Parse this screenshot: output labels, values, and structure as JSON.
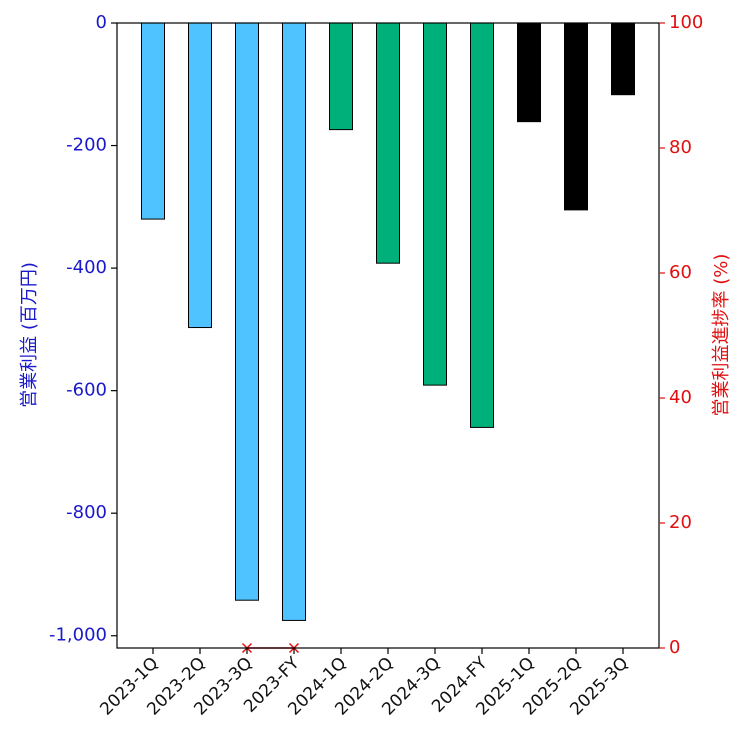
{
  "chart_data": {
    "type": "bar",
    "categories": [
      "2023-1Q",
      "2023-2Q",
      "2023-3Q",
      "2023-FY",
      "2024-1Q",
      "2024-2Q",
      "2024-3Q",
      "2024-FY",
      "2025-1Q",
      "2025-2Q",
      "2025-3Q"
    ],
    "series": [
      {
        "axis": "left",
        "kind": "bar",
        "values": [
          -320,
          -497,
          -942,
          -975,
          -174,
          -392,
          -591,
          -660,
          -161,
          -305,
          -117
        ],
        "colors": [
          "#4fc3ff",
          "#4fc3ff",
          "#4fc3ff",
          "#4fc3ff",
          "#00b07a",
          "#00b07a",
          "#00b07a",
          "#00b07a",
          "#000000",
          "#000000",
          "#000000"
        ]
      },
      {
        "axis": "right",
        "kind": "line",
        "marker": "x",
        "color": "#e01010",
        "values": [
          null,
          null,
          0,
          0,
          null,
          null,
          null,
          null,
          null,
          null,
          null
        ]
      }
    ],
    "ylabel_left": "営業利益 (百万円)",
    "ylabel_right": "営業利益進捗率 (%)",
    "ylim_left": [
      -1020,
      0
    ],
    "ylim_right": [
      0,
      100
    ],
    "yticks_left": [
      0,
      -200,
      -400,
      -600,
      -800,
      -1000
    ],
    "yticks_left_labels": [
      "0",
      "-200",
      "-400",
      "-600",
      "-800",
      "-1,000"
    ],
    "yticks_right": [
      0,
      20,
      40,
      60,
      80,
      100
    ],
    "yticks_right_labels": [
      "0",
      "20",
      "40",
      "60",
      "80",
      "100"
    ],
    "colors": {
      "left_axis": "#1a1acc",
      "right_axis": "#e01010"
    }
  }
}
